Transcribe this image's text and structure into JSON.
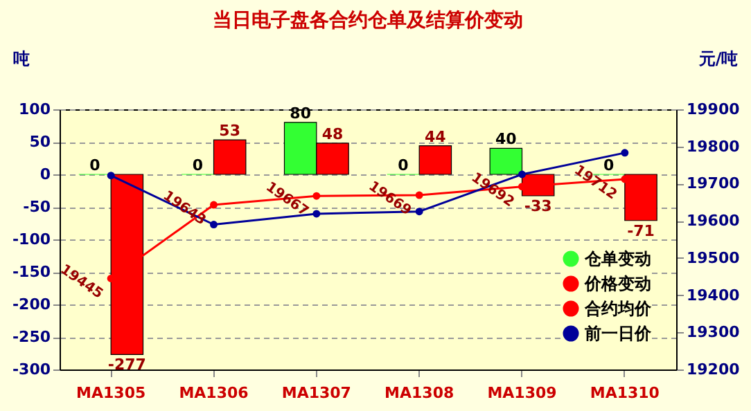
{
  "chart_data": {
    "type": "bar",
    "title": "当日电子盘各合约仓单及结算价变动",
    "ylabel": "吨",
    "y2label": "元/吨",
    "categories": [
      "MA1305",
      "MA1306",
      "MA1307",
      "MA1308",
      "MA1309",
      "MA1310"
    ],
    "series": [
      {
        "name": "仓单变动",
        "type": "bar",
        "color": "#33ff33",
        "values": [
          0,
          0,
          80,
          0,
          40,
          0
        ],
        "value_labels": [
          "0",
          "0",
          "80",
          "0",
          "40",
          "0"
        ]
      },
      {
        "name": "价格变动",
        "type": "bar",
        "color": "#ff0000",
        "values": [
          -277,
          53,
          48,
          44,
          -33,
          -71
        ],
        "value_labels": [
          "-277",
          "53",
          "48",
          "44",
          "-33",
          "-71"
        ]
      },
      {
        "name": "合约均价",
        "type": "line",
        "axis": "y2",
        "color": "#ff0000",
        "values": [
          19445,
          19643,
          19667,
          19669,
          19692,
          19712
        ],
        "value_labels": [
          "19445",
          "19643",
          "19667",
          "19669",
          "19692",
          "19712"
        ]
      },
      {
        "name": "前一日价",
        "type": "line",
        "axis": "y2",
        "color": "#000099",
        "values": [
          19722,
          19590,
          19619,
          19625,
          19725,
          19783
        ]
      }
    ],
    "ylim": [
      -300,
      100
    ],
    "yticks": [
      -300,
      -250,
      -200,
      -150,
      -100,
      -50,
      0,
      50,
      100
    ],
    "y2lim": [
      19200,
      19900
    ],
    "y2ticks": [
      19200,
      19300,
      19400,
      19500,
      19600,
      19700,
      19800,
      19900
    ],
    "grid": "y",
    "legend": "bottom right",
    "marker": "circle"
  }
}
